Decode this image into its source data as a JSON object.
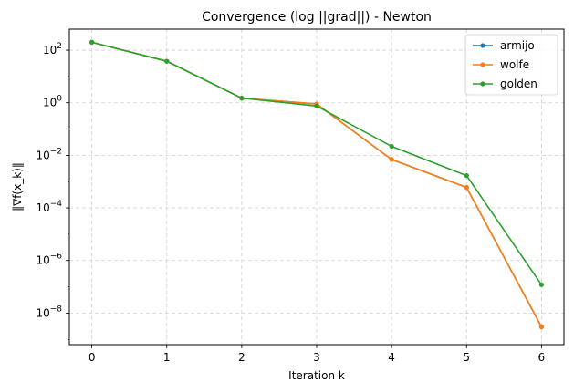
{
  "chart_data": {
    "type": "line",
    "title": "Convergence (log ||grad||) - Newton",
    "xlabel": "Iteration k",
    "ylabel": "‖∇f(x_k)‖",
    "yscale": "log",
    "grid": true,
    "legend_position": "upper-right",
    "x": [
      0,
      1,
      2,
      3,
      4,
      5,
      6
    ],
    "xlim": [
      -0.3,
      6.3
    ],
    "ylim_exponent": [
      -9.2,
      2.8
    ],
    "x_ticks": [
      "0",
      "1",
      "2",
      "3",
      "4",
      "5",
      "6"
    ],
    "y_ticks": [
      {
        "base": "10",
        "exp": "2",
        "value": 2
      },
      {
        "base": "10",
        "exp": "0",
        "value": 0
      },
      {
        "base": "10",
        "exp": "−2",
        "value": -2
      },
      {
        "base": "10",
        "exp": "−4",
        "value": -4
      },
      {
        "base": "10",
        "exp": "−6",
        "value": -6
      },
      {
        "base": "10",
        "exp": "−8",
        "value": -8
      }
    ],
    "series": [
      {
        "name": "armijo",
        "color": "#1f77b4",
        "values": [
          200,
          38,
          1.5,
          0.9,
          0.007,
          0.0006,
          3e-09
        ]
      },
      {
        "name": "wolfe",
        "color": "#ff7f0e",
        "values": [
          200,
          38,
          1.5,
          0.9,
          0.007,
          0.0006,
          3e-09
        ]
      },
      {
        "name": "golden",
        "color": "#2ca02c",
        "values": [
          200,
          38,
          1.5,
          0.75,
          0.022,
          0.0017,
          1.2e-07
        ]
      }
    ]
  }
}
